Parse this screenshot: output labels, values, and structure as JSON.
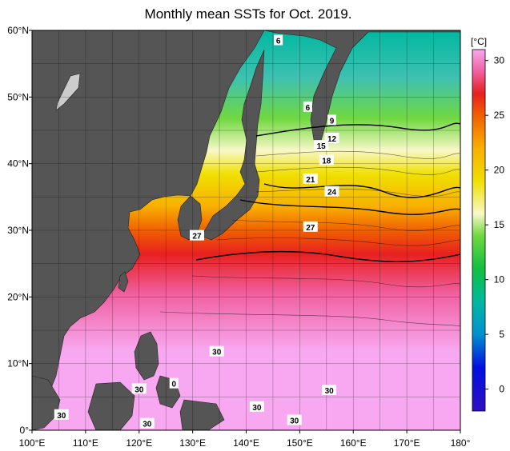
{
  "title": "Monthly mean SSTs for Oct. 2019.",
  "colorbar": {
    "unit": "[°C]",
    "ticks": [
      "30",
      "25",
      "20",
      "15",
      "10",
      "5",
      "0"
    ],
    "min": -2,
    "max": 31,
    "stops": [
      {
        "value": -2,
        "color": "#3010c0"
      },
      {
        "value": 2,
        "color": "#0010e0"
      },
      {
        "value": 5,
        "color": "#0090d0"
      },
      {
        "value": 8,
        "color": "#00b8a0"
      },
      {
        "value": 11,
        "color": "#10c040"
      },
      {
        "value": 14,
        "color": "#70d840"
      },
      {
        "value": 16,
        "color": "#f8f8c8"
      },
      {
        "value": 19,
        "color": "#f0e000"
      },
      {
        "value": 22,
        "color": "#f8b000"
      },
      {
        "value": 25,
        "color": "#f06000"
      },
      {
        "value": 27,
        "color": "#e82020"
      },
      {
        "value": 29,
        "color": "#f060a0"
      },
      {
        "value": 31,
        "color": "#f8a8f0"
      }
    ]
  },
  "axes": {
    "x_labels": [
      "100°E",
      "110°E",
      "120°E",
      "130°E",
      "140°E",
      "150°E",
      "160°E",
      "170°E",
      "180°"
    ],
    "y_labels": [
      "60°N",
      "50°N",
      "40°N",
      "30°N",
      "20°N",
      "10°N",
      "0°"
    ]
  },
  "map_data": {
    "region": {
      "lon": [
        100,
        180
      ],
      "lat": [
        0,
        60
      ]
    },
    "land_color": "#555555",
    "contour_labels": [
      {
        "text": "6",
        "lon": 146,
        "lat": 58.5
      },
      {
        "text": "6",
        "lon": 151.5,
        "lat": 48.5
      },
      {
        "text": "9",
        "lon": 156,
        "lat": 46.5
      },
      {
        "text": "12",
        "lon": 156,
        "lat": 43.8
      },
      {
        "text": "15",
        "lon": 154,
        "lat": 42.7
      },
      {
        "text": "18",
        "lon": 155,
        "lat": 40.5
      },
      {
        "text": "21",
        "lon": 152,
        "lat": 37.7
      },
      {
        "text": "24",
        "lon": 156,
        "lat": 35.8
      },
      {
        "text": "27",
        "lon": 130.8,
        "lat": 29.2
      },
      {
        "text": "27",
        "lon": 152,
        "lat": 30.5
      },
      {
        "text": "30",
        "lon": 134.5,
        "lat": 11.8
      },
      {
        "text": "30",
        "lon": 120,
        "lat": 6.2
      },
      {
        "text": "0",
        "lon": 126.5,
        "lat": 7.0
      },
      {
        "text": "30",
        "lon": 105.5,
        "lat": 2.3
      },
      {
        "text": "30",
        "lon": 121.5,
        "lat": 1.0
      },
      {
        "text": "30",
        "lon": 142,
        "lat": 3.5
      },
      {
        "text": "30",
        "lon": 155.5,
        "lat": 6.0
      },
      {
        "text": "30",
        "lon": 149,
        "lat": 1.5
      }
    ]
  }
}
